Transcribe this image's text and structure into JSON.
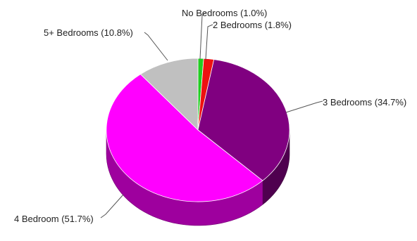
{
  "chart_data": {
    "type": "pie",
    "title": "",
    "slices": [
      {
        "label": "No Bedrooms (1.0%)",
        "value": 1.0,
        "color": "#22cc22"
      },
      {
        "label": "2 Bedrooms (1.8%)",
        "value": 1.8,
        "color": "#ee1111"
      },
      {
        "label": "3 Bedrooms (34.7%)",
        "value": 34.7,
        "color": "#800080"
      },
      {
        "label": "4 Bedroom (51.7%)",
        "value": 51.7,
        "color": "#ff00ff"
      },
      {
        "label": "5+ Bedrooms (10.8%)",
        "value": 10.8,
        "color": "#c0c0c0"
      }
    ],
    "style": "3d",
    "legend": "none"
  }
}
